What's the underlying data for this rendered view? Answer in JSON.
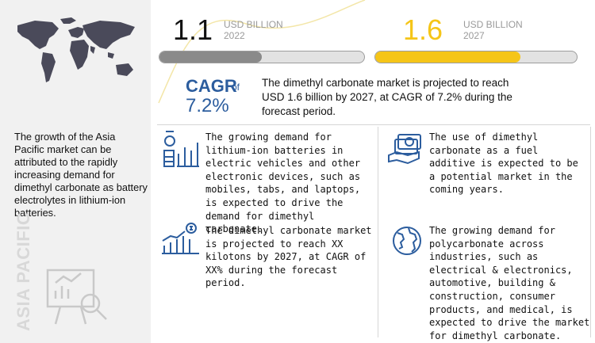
{
  "left_panel": {
    "region_label": "ASIA PACIFIC",
    "summary": "The growth of the Asia Pacific market can be attributed to the rapidly increasing demand for dimethyl carbonate as battery electrolytes in lithium-ion batteries."
  },
  "stats": [
    {
      "value": "1.1",
      "currency": "USD BILLION",
      "year": "2022",
      "progress": 0.5,
      "color": "#8a8a8a",
      "text_color": "#1a1a1a"
    },
    {
      "value": "1.6",
      "currency": "USD BILLION",
      "year": "2027",
      "progress": 0.72,
      "color": "#f5c518",
      "text_color": "#f5c518"
    }
  ],
  "cagr": {
    "label": "CAGR",
    "of": "of",
    "value": "7.2%",
    "description": "The dimethyl carbonate market is projected to reach USD 1.6 billion by 2027, at CAGR of 7.2% during the forecast period."
  },
  "cards": [
    {
      "icon": "battery-chart-icon",
      "text": "The growing demand for lithium-ion batteries in electric vehicles and other electronic devices, such as mobiles, tabs, and laptops, is expected to drive the demand for dimethyl carbonate."
    },
    {
      "icon": "fuel-money-icon",
      "text": "The use of dimethyl carbonate as a fuel additive is expected to be a potential market in the coming years."
    },
    {
      "icon": "market-growth-icon",
      "text": "The dimethyl carbonate market is projected to reach XX kilotons by 2027, at CAGR of XX% during the forecast period."
    },
    {
      "icon": "globe-icon",
      "text": "The growing demand for polycarbonate across industries, such as electrical & electronics, automotive, building & construction, consumer products, and medical, is expected to drive the market for dimethyl carbonate."
    }
  ],
  "colors": {
    "accent_blue": "#2c5d9e",
    "accent_yellow": "#f5c518",
    "gray_bar": "#8a8a8a"
  }
}
